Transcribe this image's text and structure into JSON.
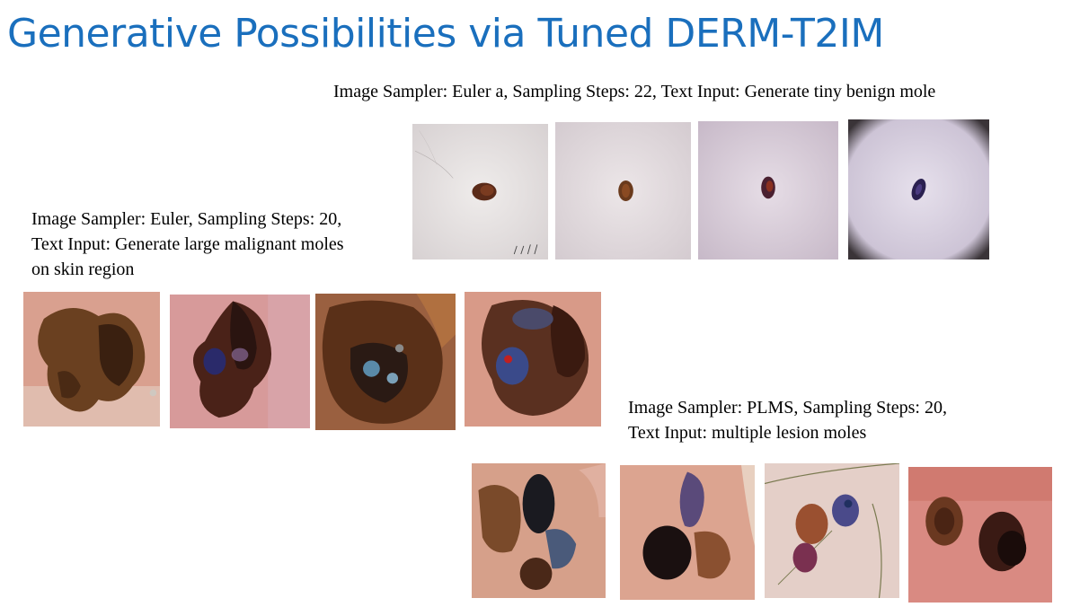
{
  "title": "Generative Possibilities via Tuned DERM-T2IM",
  "groups": [
    {
      "id": "benign",
      "caption_lines": [
        "Image Sampler: Euler a, Sampling Steps: 22, Text Input: Generate tiny benign mole"
      ]
    },
    {
      "id": "malignant",
      "caption_lines": [
        "Image Sampler: Euler, Sampling Steps: 20,",
        "Text Input: Generate large malignant moles",
        "on skin region"
      ]
    },
    {
      "id": "multiple",
      "caption_lines": [
        "Image Sampler: PLMS, Sampling Steps: 20,",
        "Text Input: multiple lesion moles"
      ]
    }
  ]
}
